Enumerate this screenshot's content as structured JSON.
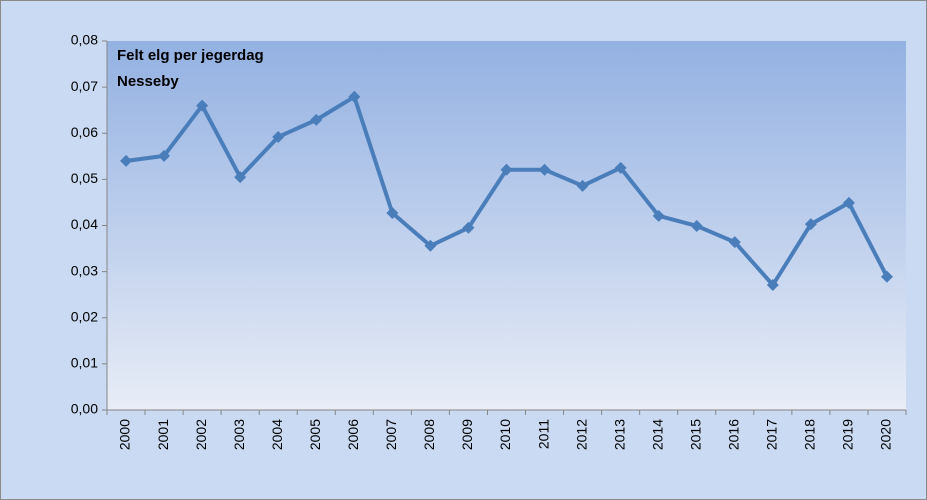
{
  "chart_data": {
    "type": "line",
    "title": "Felt elg per jegerdag",
    "subtitle": "Nesseby",
    "categories": [
      "2000",
      "2001",
      "2002",
      "2003",
      "2004",
      "2005",
      "2006",
      "2007",
      "2008",
      "2009",
      "2010",
      "2011",
      "2012",
      "2013",
      "2014",
      "2015",
      "2016",
      "2017",
      "2018",
      "2019",
      "2020"
    ],
    "series": [
      {
        "color": "#4a7ebb",
        "values": [
          0.054,
          0.0551,
          0.066,
          0.0505,
          0.0592,
          0.0629,
          0.0679,
          0.0427,
          0.0356,
          0.0395,
          0.0521,
          0.0521,
          0.0486,
          0.0525,
          0.0421,
          0.0399,
          0.0364,
          0.0271,
          0.0403,
          0.0449,
          0.0289
        ]
      }
    ],
    "ylim": [
      0,
      0.08
    ],
    "yticks": [
      {
        "value": 0,
        "label": "0,00"
      },
      {
        "value": 0.01,
        "label": "0,01"
      },
      {
        "value": 0.02,
        "label": "0,02"
      },
      {
        "value": 0.03,
        "label": "0,03"
      },
      {
        "value": 0.04,
        "label": "0,04"
      },
      {
        "value": 0.05,
        "label": "0,05"
      },
      {
        "value": 0.06,
        "label": "0,06"
      },
      {
        "value": 0.07,
        "label": "0,07"
      },
      {
        "value": 0.08,
        "label": "0,08"
      }
    ]
  }
}
